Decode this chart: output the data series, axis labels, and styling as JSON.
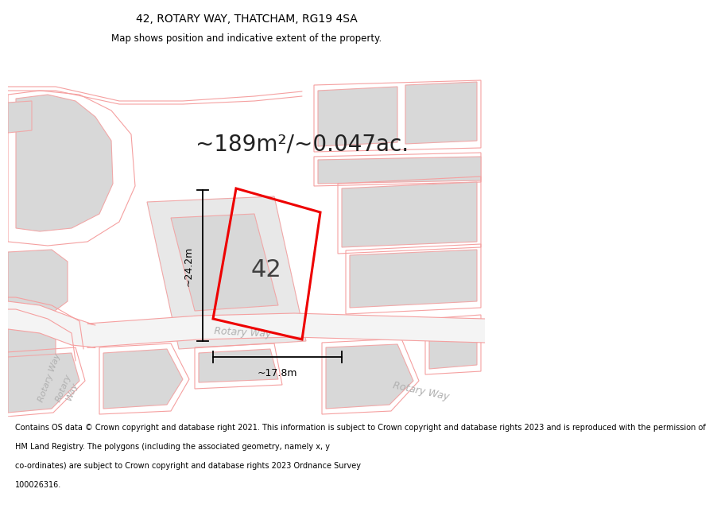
{
  "title": "42, ROTARY WAY, THATCHAM, RG19 4SA",
  "subtitle": "Map shows position and indicative extent of the property.",
  "area_label": "~189m²/~0.047ac.",
  "number_label": "42",
  "dim_width_label": "~17.8m",
  "dim_height_label": "~24.2m",
  "footer_lines": [
    "Contains OS data © Crown copyright and database right 2021. This information is subject to Crown copyright and database rights 2023 and is reproduced with the permission of",
    "HM Land Registry. The polygons (including the associated geometry, namely x, y",
    "co-ordinates) are subject to Crown copyright and database rights 2023 Ordnance Survey",
    "100026316."
  ],
  "road_color": "#f5a0a0",
  "building_color": "#d8d8d8",
  "building_edge": "#f0a8a8",
  "highlight_color": "#ee0000",
  "road_label_color": "#b0b0b0",
  "title_fontsize": 10,
  "subtitle_fontsize": 8.5,
  "area_fontsize": 20,
  "num_fontsize": 22,
  "dim_fontsize": 9,
  "road_label_fontsize": 9,
  "footer_fontsize": 7
}
